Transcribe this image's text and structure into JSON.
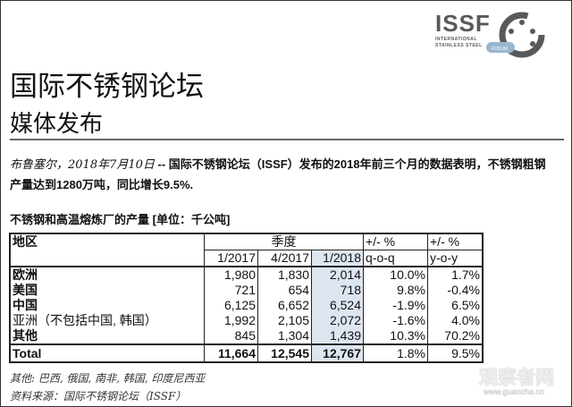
{
  "logo": {
    "name": "ISSF",
    "line1": "INTERNATIONAL",
    "line2": "STAINLESS STEEL",
    "badge": "FORUM"
  },
  "title": "国际不锈钢论坛",
  "subtitle": "媒体发布",
  "dateline": "布鲁塞尔，2018年7月10日",
  "body": " -- 国际不锈钢论坛（ISSF）发布的2018年前三个月的数据表明，不锈钢粗钢产量达到1280万吨，同比增长9.5%.",
  "caption": "不锈钢和高温熔炼厂的产量 [单位：千公吨]",
  "table": {
    "h_region": "地区",
    "h_quarter": "季度",
    "h_pct1": "+/- %",
    "h_pct2": "+/- %",
    "cols": [
      "1/2017",
      "4/2017",
      "1/2018",
      "q-o-q",
      "y-o-y"
    ],
    "rows": [
      [
        "欧洲",
        "1,980",
        "1,830",
        "2,014",
        "10.0%",
        "1.7%"
      ],
      [
        "美国",
        "721",
        "654",
        "718",
        "9.8%",
        "-0.4%"
      ],
      [
        "中国",
        "6,125",
        "6,652",
        "6,524",
        "-1.9%",
        "6.5%"
      ],
      [
        "亚洲（不包括中国, 韩国）",
        "1,992",
        "2,105",
        "2,072",
        "-1.6%",
        "4.0%"
      ],
      [
        "其他",
        "845",
        "1,304",
        "1,439",
        "10.3%",
        "70.2%"
      ]
    ],
    "total": [
      "Total",
      "11,664",
      "12,545",
      "12,767",
      "1.8%",
      "9.5%"
    ]
  },
  "footnote1": "其他: 巴西, 俄国, 南非, 韩国, 印度尼西亚",
  "footnote2": "资料来源：国际不锈钢论坛（ISSF）",
  "watermark": "观察者网",
  "watermark_url": "www.guancha.cn"
}
